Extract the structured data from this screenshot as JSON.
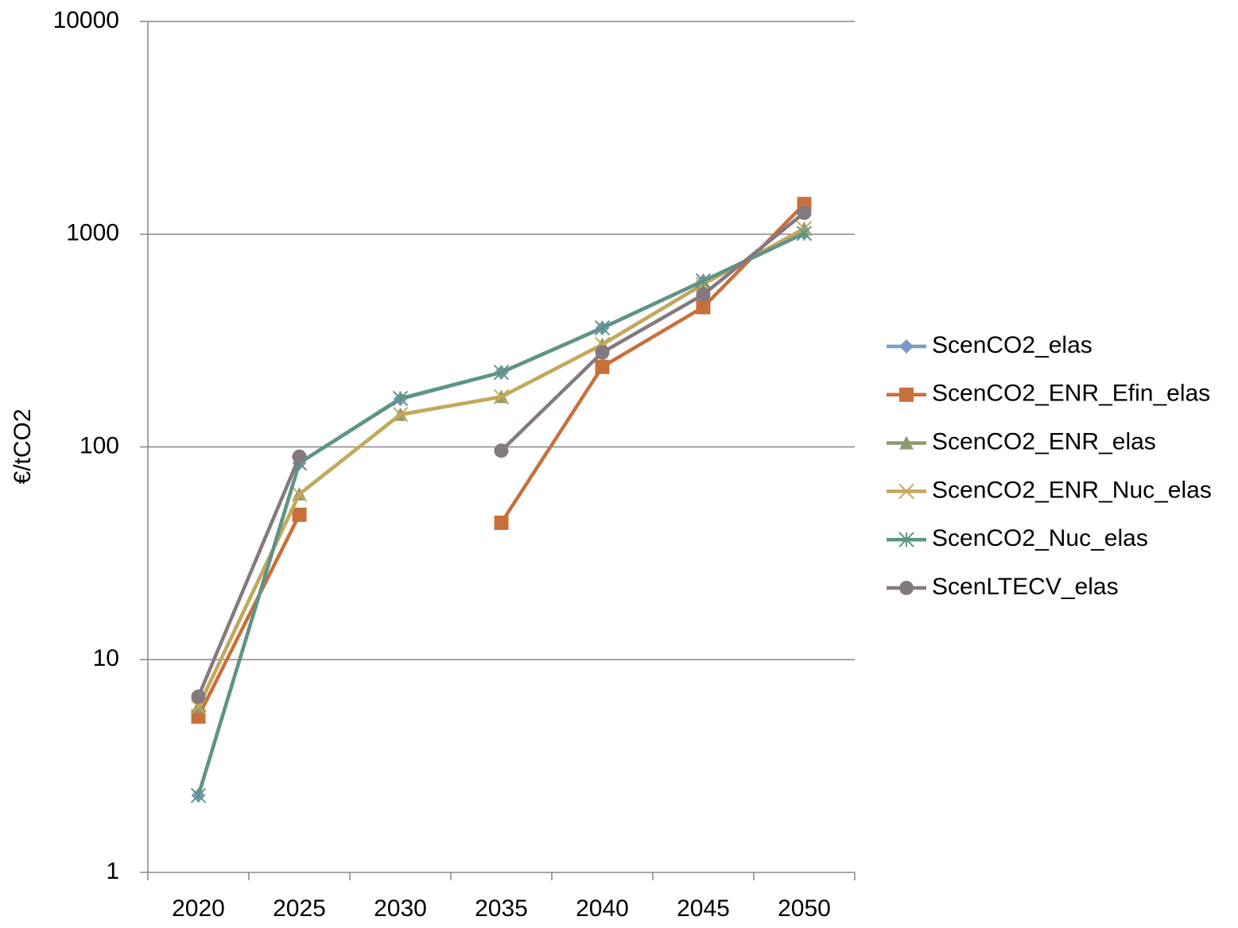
{
  "chart_data": {
    "type": "line",
    "y_label": "€/tCO2",
    "categories": [
      "2020",
      "2025",
      "2030",
      "2035",
      "2040",
      "2045",
      "2050"
    ],
    "log_scale": true,
    "ylim": [
      1,
      10000
    ],
    "yticks": [
      1,
      10,
      100,
      1000,
      10000
    ],
    "grid": true,
    "legend": "right",
    "series": [
      {
        "name": "ScenCO2_elas",
        "color": "#7a9cc4",
        "marker": "diamond",
        "values": [
          2.3,
          84,
          168,
          224,
          362,
          602,
          1010
        ]
      },
      {
        "name": "ScenCO2_ENR_Efin_elas",
        "color": "#c8703b",
        "marker": "square",
        "values": [
          5.4,
          48,
          null,
          44,
          238,
          454,
          1386
        ]
      },
      {
        "name": "ScenCO2_ENR_elas",
        "color": "#8e9a6e",
        "marker": "triangle",
        "values": [
          6.0,
          60,
          142,
          172,
          303,
          582,
          1062
        ]
      },
      {
        "name": "ScenCO2_ENR_Nuc_elas",
        "color": "#c4a85a",
        "marker": "x",
        "values": [
          6.0,
          60,
          142,
          172,
          303,
          582,
          1062
        ]
      },
      {
        "name": "ScenCO2_Nuc_elas",
        "color": "#5e9486",
        "marker": "star",
        "values": [
          2.3,
          84,
          169,
          224,
          363,
          603,
          1009
        ]
      },
      {
        "name": "ScenLTECV_elas",
        "color": "#84797e",
        "marker": "circle",
        "values": [
          6.7,
          90,
          null,
          96,
          278,
          520,
          1260
        ]
      }
    ]
  }
}
